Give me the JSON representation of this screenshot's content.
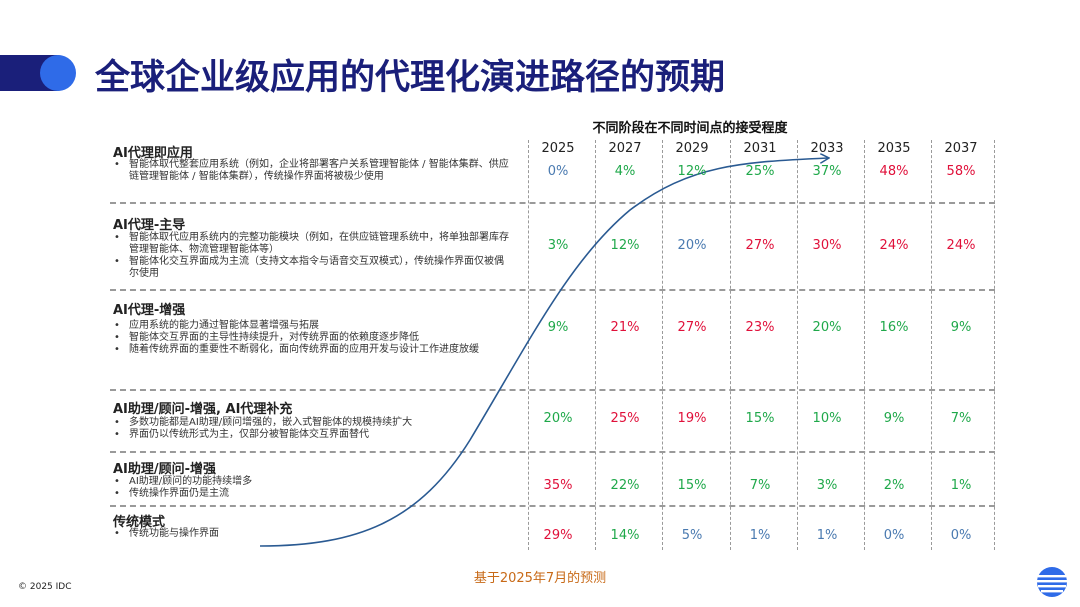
{
  "title": "全球企业级应用的代理化演进路径的预期",
  "subtitle": "不同阶段在不同时间点的接受程度",
  "years": [
    "2025",
    "2027",
    "2029",
    "2031",
    "2033",
    "2035",
    "2037"
  ],
  "stages": [
    {
      "title": "AI代理即应用",
      "bullets": [
        "智能体取代整套应用系统（例如，企业将部署客户关系管理智能体 / 智能体集群、供应链管理智能体 / 智能体集群），传统操作界面将被极少使用"
      ],
      "values": [
        "0%",
        "4%",
        "12%",
        "25%",
        "37%",
        "48%",
        "58%"
      ]
    },
    {
      "title": "AI代理-主导",
      "bullets": [
        "智能体取代应用系统内的完整功能模块（例如，在供应链管理系统中，将单独部署库存管理智能体、物流管理智能体等）",
        "智能体化交互界面成为主流（支持文本指令与语音交互双模式），传统操作界面仅被偶尔使用"
      ],
      "values": [
        "3%",
        "12%",
        "20%",
        "27%",
        "30%",
        "24%",
        "24%"
      ]
    },
    {
      "title": "AI代理-增强",
      "bullets": [
        "应用系统的能力通过智能体显著增强与拓展",
        "智能体交互界面的主导性持续提升，对传统界面的依赖度逐步降低",
        "随着传统界面的重要性不断弱化，面向传统界面的应用开发与设计工作进度放缓"
      ],
      "values": [
        "9%",
        "21%",
        "27%",
        "23%",
        "20%",
        "16%",
        "9%"
      ]
    },
    {
      "title": "AI助理/顾问-增强, AI代理补充",
      "bullets": [
        "多数功能都是AI助理/顾问增强的，嵌入式智能体的规模持续扩大",
        "界面仍以传统形式为主，仅部分被智能体交互界面替代"
      ],
      "values": [
        "20%",
        "25%",
        "19%",
        "15%",
        "10%",
        "9%",
        "7%"
      ]
    },
    {
      "title": "AI助理/顾问-增强",
      "bullets": [
        "AI助理/顾问的功能持续增多",
        "传统操作界面仍是主流"
      ],
      "values": [
        "35%",
        "22%",
        "15%",
        "7%",
        "3%",
        "2%",
        "1%"
      ]
    },
    {
      "title": "传统模式",
      "bullets": [
        "传统功能与操作界面"
      ],
      "values": [
        "29%",
        "14%",
        "5%",
        "1%",
        "1%",
        "0%",
        "0%"
      ]
    }
  ],
  "colors": {
    "blue": "#4a7ab0",
    "green": "#1fa84a",
    "red": "#e0103a",
    "title": "#1a1f7a",
    "accent": "#2f6be8",
    "curve": "#2a5a92",
    "note": "#c86a18"
  },
  "value_colors": [
    [
      "blue",
      "green",
      "green",
      "green",
      "green",
      "red",
      "red"
    ],
    [
      "green",
      "green",
      "blue",
      "red",
      "red",
      "red",
      "red"
    ],
    [
      "green",
      "red",
      "red",
      "red",
      "green",
      "green",
      "green"
    ],
    [
      "green",
      "red",
      "red",
      "green",
      "green",
      "green",
      "green"
    ],
    [
      "red",
      "green",
      "green",
      "green",
      "green",
      "green",
      "green"
    ],
    [
      "red",
      "green",
      "blue",
      "blue",
      "blue",
      "blue",
      "blue"
    ]
  ],
  "footer_note": "基于2025年7月的预测",
  "copyright": "© 2025 IDC",
  "logo_icon": "idc-logo-icon"
}
